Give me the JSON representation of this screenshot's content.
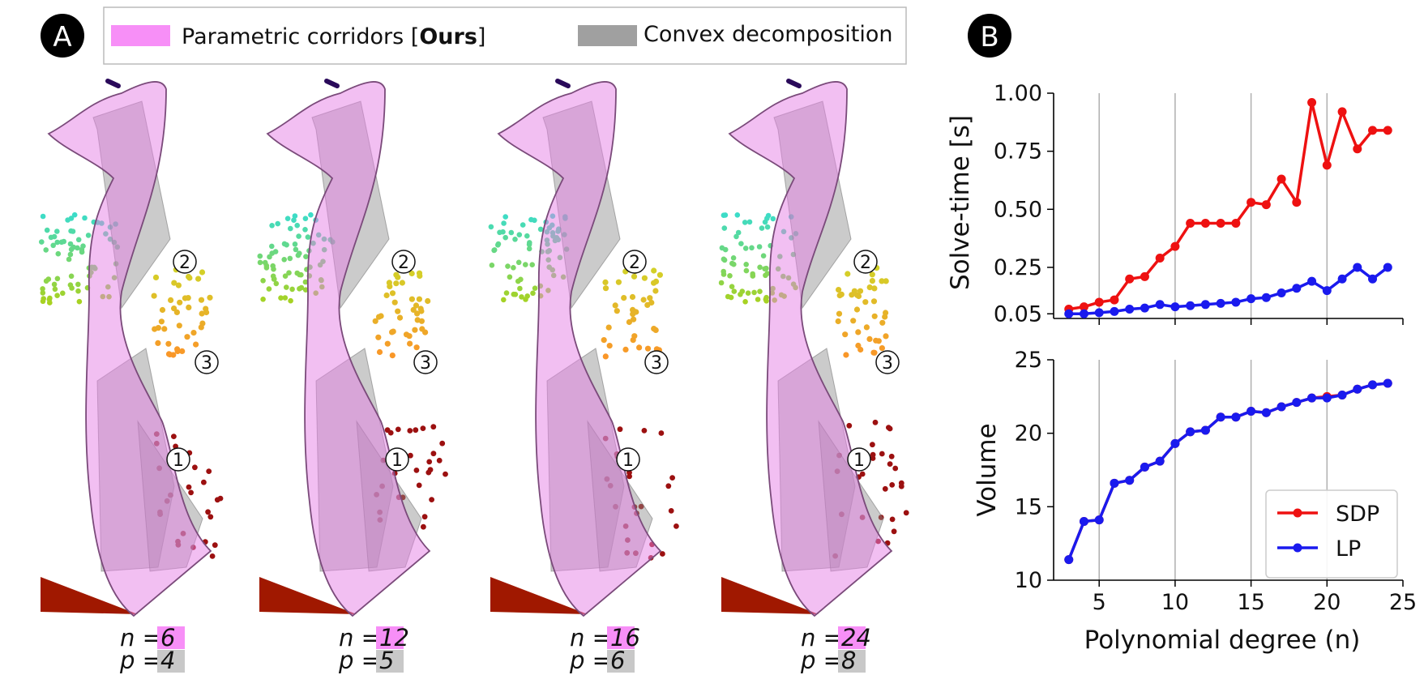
{
  "panel_a": {
    "badge": "A",
    "legend": {
      "corridor_label": "Parametric corridors  [",
      "corridor_bold": "Ours",
      "corridor_close": "]",
      "decomp_label": "Convex decomposition"
    },
    "landmarks": [
      "2",
      "3",
      "1"
    ],
    "subplots": [
      {
        "n_label": "n",
        "n_value": "6",
        "p_label": "p",
        "p_value": "4"
      },
      {
        "n_label": "n",
        "n_value": "12",
        "p_label": "p",
        "p_value": "5"
      },
      {
        "n_label": "n",
        "n_value": "16",
        "p_label": "p",
        "p_value": "6"
      },
      {
        "n_label": "n",
        "n_value": "24",
        "p_label": "p",
        "p_value": "8"
      }
    ],
    "equals": "="
  },
  "panel_b": {
    "badge": "B"
  },
  "colors": {
    "corridor": "#e57fe5",
    "decomp": "#8c8c8c",
    "sdp": "#ee1111",
    "lp": "#1a1aee"
  },
  "chart_data": [
    {
      "type": "line",
      "title": "",
      "xlabel": "",
      "ylabel": "Solve-time [s]",
      "xlim": [
        2,
        25
      ],
      "ylim": [
        0.03,
        1.0
      ],
      "xticks": [
        5,
        10,
        15,
        20,
        25
      ],
      "yticks": [
        0.05,
        0.25,
        0.5,
        0.75,
        1.0
      ],
      "ytick_labels": [
        "0.05",
        "0.25",
        "0.50",
        "0.75",
        "1.00"
      ],
      "grid": "vertical",
      "x": [
        3,
        4,
        5,
        6,
        7,
        8,
        9,
        10,
        11,
        12,
        13,
        14,
        15,
        16,
        17,
        18,
        19,
        20,
        21,
        22,
        23,
        24
      ],
      "series": [
        {
          "name": "SDP",
          "values": [
            0.07,
            0.08,
            0.1,
            0.11,
            0.2,
            0.21,
            0.29,
            0.34,
            0.44,
            0.44,
            0.44,
            0.44,
            0.53,
            0.52,
            0.63,
            0.53,
            0.96,
            0.69,
            0.92,
            0.76,
            0.84,
            0.84
          ]
        },
        {
          "name": "LP",
          "values": [
            0.05,
            0.05,
            0.055,
            0.06,
            0.07,
            0.075,
            0.09,
            0.08,
            0.085,
            0.09,
            0.095,
            0.1,
            0.115,
            0.12,
            0.14,
            0.16,
            0.19,
            0.15,
            0.2,
            0.25,
            0.2,
            0.25
          ]
        }
      ]
    },
    {
      "type": "line",
      "title": "",
      "xlabel": "Polynomial degree (n)",
      "ylabel": "Volume",
      "xlim": [
        2,
        25
      ],
      "ylim": [
        10,
        25
      ],
      "xticks": [
        5,
        10,
        15,
        20,
        25
      ],
      "yticks": [
        10,
        15,
        20,
        25
      ],
      "grid": "vertical",
      "legend": "bottom-right",
      "x": [
        3,
        4,
        5,
        6,
        7,
        8,
        9,
        10,
        11,
        12,
        13,
        14,
        15,
        16,
        17,
        18,
        19,
        20,
        21,
        22,
        23,
        24
      ],
      "series": [
        {
          "name": "SDP",
          "values": [
            11.4,
            14.0,
            14.1,
            16.6,
            16.8,
            17.7,
            18.1,
            19.3,
            20.1,
            20.2,
            21.1,
            21.1,
            21.5,
            21.4,
            21.8,
            22.1,
            22.4,
            22.5,
            22.6,
            23.0,
            23.3,
            23.4
          ]
        },
        {
          "name": "LP",
          "values": [
            11.4,
            14.0,
            14.1,
            16.6,
            16.8,
            17.7,
            18.1,
            19.3,
            20.1,
            20.2,
            21.1,
            21.1,
            21.5,
            21.4,
            21.8,
            22.1,
            22.4,
            22.4,
            22.6,
            23.0,
            23.3,
            23.4
          ]
        }
      ]
    }
  ]
}
